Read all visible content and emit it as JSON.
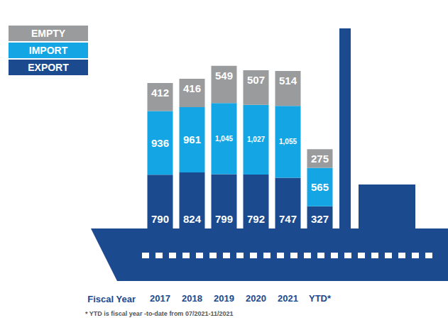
{
  "chart_data": {
    "type": "bar",
    "x_label": "Fiscal Year",
    "categories": [
      "2017",
      "2018",
      "2019",
      "2020",
      "2021",
      "YTD*"
    ],
    "series": [
      {
        "name": "EXPORT",
        "color": "#1b4a8f",
        "values": [
          790,
          824,
          799,
          792,
          747,
          327
        ]
      },
      {
        "name": "IMPORT",
        "color": "#14a6e4",
        "values": [
          936,
          961,
          1045,
          1027,
          1055,
          565
        ],
        "value_labels": [
          "936",
          "961",
          "1,045",
          "1,027",
          "1,055",
          "565"
        ]
      },
      {
        "name": "EMPTY",
        "color": "#9a9b9d",
        "values": [
          412,
          416,
          549,
          507,
          514,
          275
        ]
      }
    ],
    "ylim": [
      0,
      2400
    ],
    "stacked": true,
    "data_labels": true,
    "tick_labels": "x",
    "grid": false,
    "legend": "upper left",
    "annotations": [
      "* YTD is fiscal year -to-date from 07/2021-11/2021"
    ]
  }
}
